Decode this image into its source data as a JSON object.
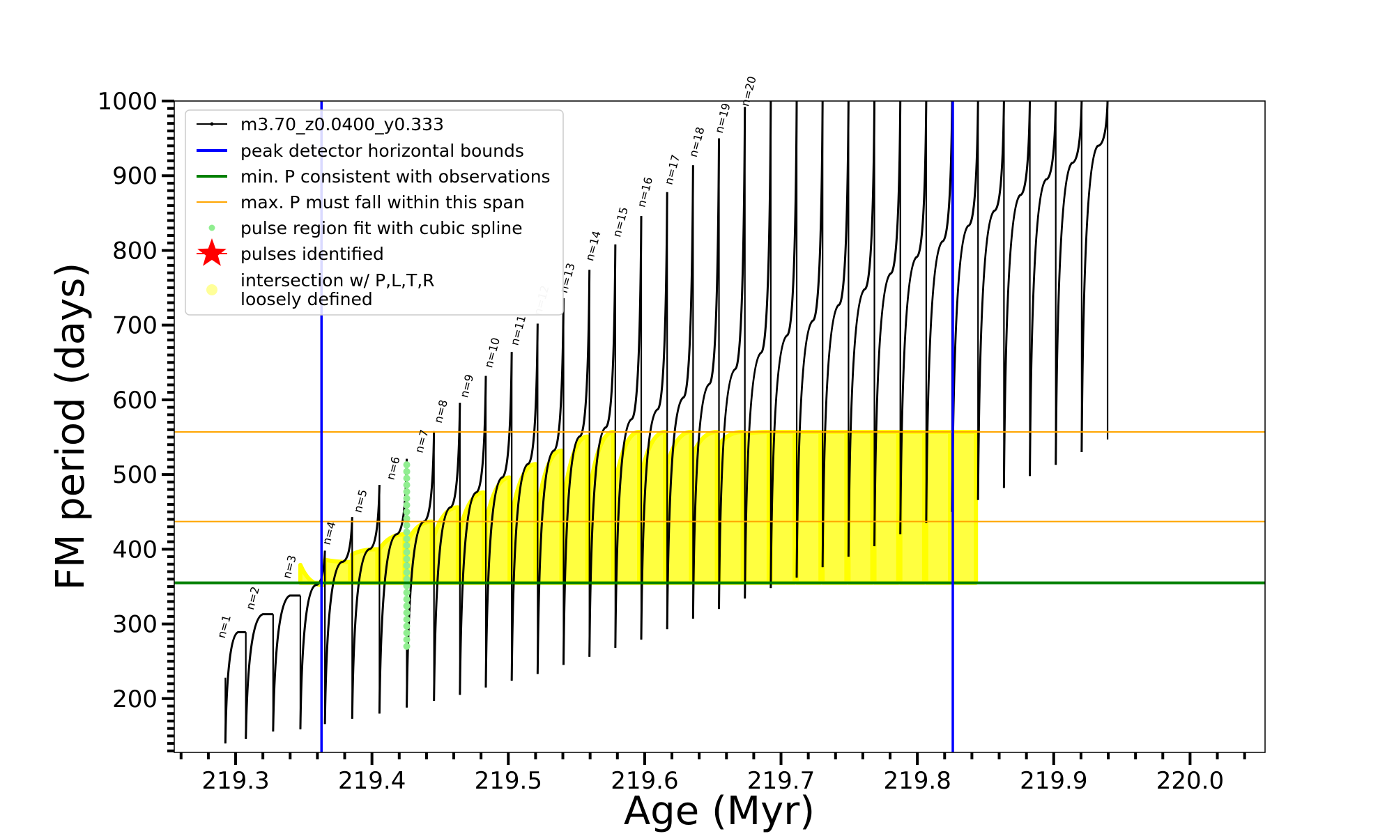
{
  "chart_data": {
    "type": "line",
    "xlabel": "Age (Myr)",
    "ylabel": "FM period (days)",
    "xlim": [
      219.255,
      220.055
    ],
    "ylim": [
      128,
      1000
    ],
    "xticks": [
      219.3,
      219.4,
      219.5,
      219.6,
      219.7,
      219.8,
      219.9,
      220.0
    ],
    "xtick_labels": [
      "219.3",
      "219.4",
      "219.5",
      "219.6",
      "219.7",
      "219.8",
      "219.9",
      "220.0"
    ],
    "yticks": [
      200,
      300,
      400,
      500,
      600,
      700,
      800,
      900,
      1000
    ],
    "ytick_labels": [
      "200",
      "300",
      "400",
      "500",
      "600",
      "700",
      "800",
      "900",
      "1000"
    ],
    "grid": false,
    "legend_position": "top-left",
    "legend": [
      {
        "label": "m3.70_z0.0400_y0.333",
        "marker": "line-dot",
        "color": "#000000"
      },
      {
        "label": "peak detector horizontal bounds",
        "marker": "line",
        "color": "#0000ff"
      },
      {
        "label": "min. P consistent with observations",
        "marker": "line",
        "color": "#008000"
      },
      {
        "label": "max. P must fall within this span",
        "marker": "line",
        "color": "#ffa500"
      },
      {
        "label": "pulse region fit with cubic spline",
        "marker": "dot",
        "color": "#90ee90"
      },
      {
        "label": "pulses identified",
        "marker": "star",
        "color": "#ff0000"
      },
      {
        "label": "intersection w/ P,L,T,R",
        "label2": "loosely defined",
        "marker": "circle",
        "color": "#ffff99"
      }
    ],
    "vlines": [
      {
        "x": 219.363,
        "color": "#0000ff"
      },
      {
        "x": 219.826,
        "color": "#0000ff"
      }
    ],
    "hlines": [
      {
        "y": 355,
        "color": "#008000",
        "width": 4
      },
      {
        "y": 437,
        "color": "#ffa500",
        "width": 2
      },
      {
        "y": 557,
        "color": "#ffa500",
        "width": 2
      }
    ],
    "pulse_labels": [
      {
        "label": "n=1",
        "x": 219.292,
        "y": 280,
        "color": "#000000"
      },
      {
        "label": "n=2",
        "x": 219.313,
        "y": 318,
        "color": "#000000"
      },
      {
        "label": "n=3",
        "x": 219.34,
        "y": 360,
        "color": "#000000"
      },
      {
        "label": "n=4",
        "x": 219.369,
        "y": 405,
        "color": "#000000"
      },
      {
        "label": "n=5",
        "x": 219.392,
        "y": 448,
        "color": "#000000"
      },
      {
        "label": "n=6",
        "x": 219.416,
        "y": 492,
        "color": "#000000"
      },
      {
        "label": "n=7",
        "x": 219.437,
        "y": 528,
        "color": "#000000"
      },
      {
        "label": "n=8",
        "x": 219.451,
        "y": 568,
        "color": "#000000"
      },
      {
        "label": "n=9",
        "x": 219.47,
        "y": 602,
        "color": "#000000"
      },
      {
        "label": "n=10",
        "x": 219.488,
        "y": 642,
        "color": "#000000"
      },
      {
        "label": "n=11",
        "x": 219.507,
        "y": 672,
        "color": "#000000"
      },
      {
        "label": "n=12",
        "x": 219.524,
        "y": 712,
        "color": "#bbbbbb"
      },
      {
        "label": "n=13",
        "x": 219.543,
        "y": 742,
        "color": "#000000"
      },
      {
        "label": "n=14",
        "x": 219.562,
        "y": 785,
        "color": "#000000"
      },
      {
        "label": "n=15",
        "x": 219.582,
        "y": 817,
        "color": "#000000"
      },
      {
        "label": "n=16",
        "x": 219.6,
        "y": 857,
        "color": "#000000"
      },
      {
        "label": "n=17",
        "x": 219.62,
        "y": 887,
        "color": "#000000"
      },
      {
        "label": "n=18",
        "x": 219.638,
        "y": 924,
        "color": "#000000"
      },
      {
        "label": "n=19",
        "x": 219.657,
        "y": 956,
        "color": "#000000"
      },
      {
        "label": "n=20",
        "x": 219.676,
        "y": 992,
        "color": "#000000"
      }
    ],
    "series": [
      {
        "name": "m3.70_z0.0400_y0.333",
        "color": "#000000",
        "pulse_dips": [
          {
            "x": 219.2925,
            "min": 140,
            "before": 228,
            "peak": 289
          },
          {
            "x": 219.3075,
            "min": 146,
            "before": 289,
            "peak": 313
          },
          {
            "x": 219.3275,
            "min": 156,
            "before": 313,
            "peak": 338
          },
          {
            "x": 219.3475,
            "min": 159,
            "before": 338,
            "peak": 352
          },
          {
            "x": 219.3655,
            "min": 166,
            "before": 398,
            "peak": 383
          },
          {
            "x": 219.3855,
            "min": 173,
            "before": 443,
            "peak": 400
          },
          {
            "x": 219.4055,
            "min": 180,
            "before": 486,
            "peak": 420
          },
          {
            "x": 219.4255,
            "min": 188,
            "before": 521,
            "peak": 437
          },
          {
            "x": 219.4455,
            "min": 197,
            "before": 558,
            "peak": 456
          },
          {
            "x": 219.4645,
            "min": 205,
            "before": 596,
            "peak": 476
          },
          {
            "x": 219.4835,
            "min": 215,
            "before": 632,
            "peak": 496
          },
          {
            "x": 219.5025,
            "min": 224,
            "before": 664,
            "peak": 514
          },
          {
            "x": 219.5215,
            "min": 233,
            "before": 702,
            "peak": 532
          },
          {
            "x": 219.5405,
            "min": 245,
            "before": 736,
            "peak": 551
          },
          {
            "x": 219.5595,
            "min": 256,
            "before": 774,
            "peak": 563
          },
          {
            "x": 219.5785,
            "min": 268,
            "before": 808,
            "peak": 574
          },
          {
            "x": 219.5975,
            "min": 279,
            "before": 846,
            "peak": 587
          },
          {
            "x": 219.6165,
            "min": 293,
            "before": 878,
            "peak": 603
          },
          {
            "x": 219.6355,
            "min": 307,
            "before": 914,
            "peak": 621
          },
          {
            "x": 219.6545,
            "min": 320,
            "before": 950,
            "peak": 641
          },
          {
            "x": 219.6735,
            "min": 334,
            "before": 992,
            "peak": 663
          },
          {
            "x": 219.6925,
            "min": 348,
            "before": 1000,
            "peak": 686
          },
          {
            "x": 219.7115,
            "min": 362,
            "before": 1000,
            "peak": 706
          },
          {
            "x": 219.7305,
            "min": 376,
            "before": 1000,
            "peak": 727
          },
          {
            "x": 219.7495,
            "min": 390,
            "before": 1000,
            "peak": 748
          },
          {
            "x": 219.7685,
            "min": 404,
            "before": 1000,
            "peak": 769
          },
          {
            "x": 219.7875,
            "min": 420,
            "before": 1000,
            "peak": 791
          },
          {
            "x": 219.8065,
            "min": 435,
            "before": 1000,
            "peak": 812
          },
          {
            "x": 219.8255,
            "min": 450,
            "before": 1000,
            "peak": 833
          },
          {
            "x": 219.8445,
            "min": 466,
            "before": 1000,
            "peak": 853
          },
          {
            "x": 219.8635,
            "min": 482,
            "before": 1000,
            "peak": 874
          },
          {
            "x": 219.8825,
            "min": 498,
            "before": 1000,
            "peak": 895
          },
          {
            "x": 219.9015,
            "min": 513,
            "before": 1000,
            "peak": 917
          },
          {
            "x": 219.9205,
            "min": 530,
            "before": 1000,
            "peak": 940
          },
          {
            "x": 219.9395,
            "min": 547,
            "before": 1000,
            "peak": 964
          }
        ]
      },
      {
        "name": "intersection w/ P,L,T,R loosely defined",
        "color": "#ffff00",
        "y_window": [
          355,
          557
        ]
      },
      {
        "name": "pulse region fit with cubic spline",
        "color": "#90ee90",
        "x": 219.4255,
        "y_range": [
          270,
          521
        ]
      }
    ]
  }
}
